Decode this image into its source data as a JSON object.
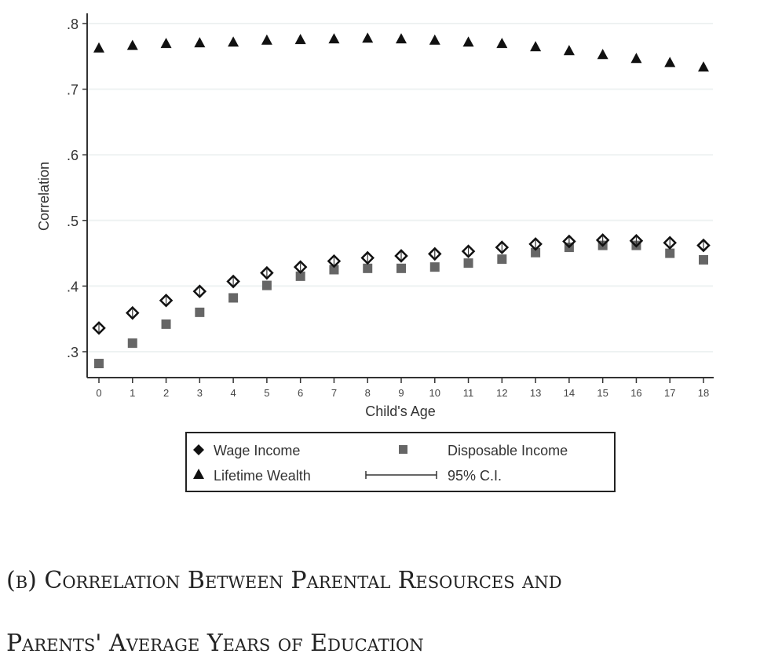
{
  "chart_data": {
    "type": "scatter",
    "title": "",
    "xlabel": "Child's Age",
    "ylabel": "Correlation",
    "x": [
      0,
      1,
      2,
      3,
      4,
      5,
      6,
      7,
      8,
      9,
      10,
      11,
      12,
      13,
      14,
      15,
      16,
      17,
      18
    ],
    "xticks": [
      "0",
      "1",
      "2",
      "3",
      "4",
      "5",
      "6",
      "7",
      "8",
      "9",
      "10",
      "11",
      "12",
      "13",
      "14",
      "15",
      "16",
      "17",
      "18"
    ],
    "yticks": [
      {
        "v": 0.3,
        "label": ".3"
      },
      {
        "v": 0.4,
        "label": ".4"
      },
      {
        "v": 0.5,
        "label": ".5"
      },
      {
        "v": 0.6,
        "label": ".6"
      },
      {
        "v": 0.7,
        "label": ".7"
      },
      {
        "v": 0.8,
        "label": ".8"
      }
    ],
    "ylim": [
      0.265,
      0.817
    ],
    "grid": true,
    "legend_placement": "bottom",
    "series": [
      {
        "name": "Wage Income",
        "marker": "diamond",
        "color": "#111111",
        "values": [
          0.336,
          0.359,
          0.378,
          0.392,
          0.407,
          0.42,
          0.429,
          0.438,
          0.443,
          0.446,
          0.449,
          0.453,
          0.459,
          0.464,
          0.468,
          0.47,
          0.469,
          0.466,
          0.462
        ]
      },
      {
        "name": "Disposable Income",
        "marker": "square",
        "color": "#666666",
        "values": [
          0.282,
          0.313,
          0.342,
          0.36,
          0.382,
          0.401,
          0.415,
          0.425,
          0.427,
          0.427,
          0.429,
          0.435,
          0.441,
          0.451,
          0.459,
          0.462,
          0.462,
          0.45,
          0.44
        ]
      },
      {
        "name": "Lifetime Wealth",
        "marker": "triangle",
        "color": "#111111",
        "values": [
          0.763,
          0.767,
          0.77,
          0.771,
          0.772,
          0.775,
          0.776,
          0.777,
          0.778,
          0.777,
          0.775,
          0.772,
          0.77,
          0.765,
          0.759,
          0.753,
          0.747,
          0.741,
          0.734
        ]
      }
    ],
    "ci_label": "95% C.I."
  },
  "caption": {
    "line1": "(b) Correlation Between Parental Resources and",
    "line2": "Parents' Average Years of Education"
  }
}
